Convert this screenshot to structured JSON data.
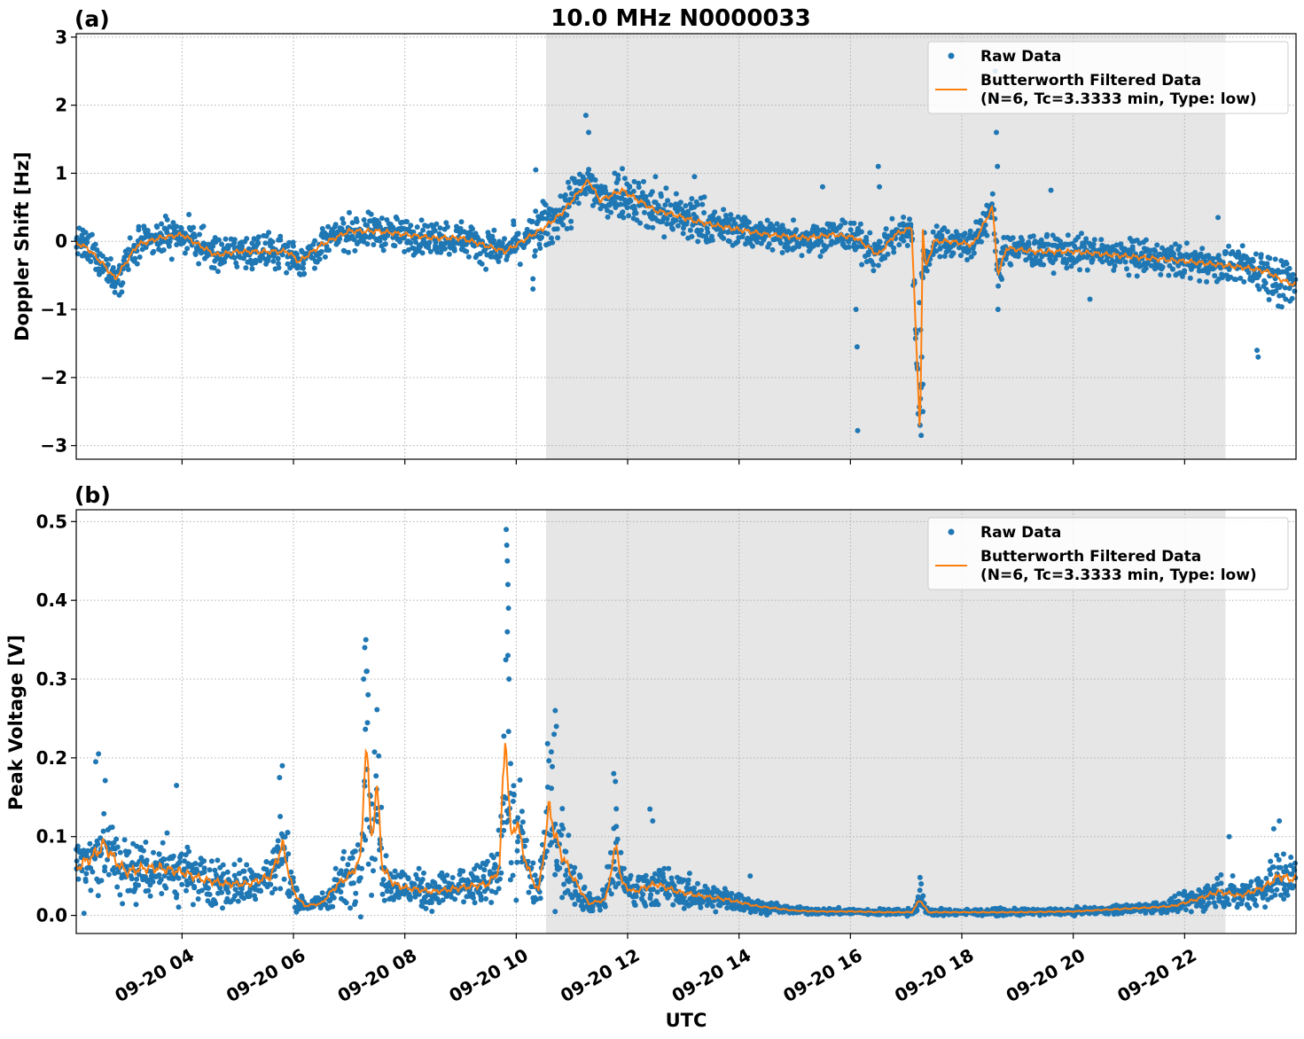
{
  "figure_title": "10.0 MHz N0000033",
  "xlabel": "UTC",
  "colors": {
    "raw": "#1f77b4",
    "filtered": "#ff7f0e",
    "shade": "#e6e6e6",
    "grid": "#b0b0b0"
  },
  "shaded_region": {
    "start": "09-20 10:32",
    "end": "09-20 22:44"
  },
  "x_range": [
    "09-20 02:06",
    "09-20 24:00"
  ],
  "x_ticks": [
    "09-20 04",
    "09-20 06",
    "09-20 08",
    "09-20 10",
    "09-20 12",
    "09-20 14",
    "09-20 16",
    "09-20 18",
    "09-20 20",
    "09-20 22"
  ],
  "legend": {
    "raw_label": "Raw Data",
    "filtered_label_line1": "Butterworth Filtered Data",
    "filtered_label_line2": "(N=6, Tc=3.3333 min, Type: low)"
  },
  "chart_data": [
    {
      "type": "scatter",
      "panel_label": "(a)",
      "ylabel": "Doppler Shift [Hz]",
      "ylim": [
        -3.2,
        3.05
      ],
      "y_ticks": [
        3,
        2,
        1,
        0,
        -1,
        -2,
        -3
      ],
      "y_tick_labels": [
        "3",
        "2",
        "1",
        "0",
        "−1",
        "−2",
        "−3"
      ],
      "grid": true,
      "legend_position": "top-right",
      "series": [
        {
          "name": "Butterworth Filtered Data (N=6, Tc=3.3333 min, Type: low)",
          "x_hours": [
            2.1,
            2.3,
            2.6,
            2.8,
            3.2,
            3.6,
            4.0,
            4.3,
            4.6,
            5.0,
            5.5,
            5.9,
            6.1,
            6.5,
            7.0,
            7.5,
            8.0,
            8.5,
            9.0,
            9.4,
            9.8,
            10.1,
            10.5,
            10.8,
            11.1,
            11.3,
            11.5,
            11.9,
            12.2,
            12.5,
            12.8,
            13.2,
            13.8,
            14.5,
            15.2,
            15.7,
            16.1,
            16.5,
            16.8,
            17.1,
            17.25,
            17.3,
            17.35,
            17.5,
            17.8,
            18.2,
            18.55,
            18.65,
            18.8,
            19.3,
            20.0,
            20.7,
            21.4,
            22.1,
            22.7,
            23.2,
            23.5,
            23.7,
            24.0
          ],
          "y": [
            -0.02,
            -0.1,
            -0.35,
            -0.55,
            -0.05,
            0.05,
            0.1,
            -0.05,
            -0.2,
            -0.15,
            -0.15,
            -0.15,
            -0.3,
            -0.05,
            0.15,
            0.15,
            0.1,
            0.05,
            0.05,
            -0.05,
            -0.15,
            0.0,
            0.2,
            0.4,
            0.7,
            0.9,
            0.6,
            0.75,
            0.6,
            0.45,
            0.4,
            0.3,
            0.2,
            0.1,
            0.05,
            0.1,
            0.05,
            -0.2,
            0.1,
            0.2,
            -2.9,
            0.2,
            -0.4,
            0.0,
            0.0,
            -0.05,
            0.5,
            -0.5,
            -0.1,
            -0.15,
            -0.15,
            -0.2,
            -0.25,
            -0.3,
            -0.35,
            -0.4,
            -0.45,
            -0.55,
            -0.65
          ]
        },
        {
          "name": "Raw Data",
          "outliers": [
            [
              11.25,
              1.85
            ],
            [
              11.3,
              1.6
            ],
            [
              16.1,
              -1.0
            ],
            [
              16.12,
              -1.55
            ],
            [
              16.13,
              -2.78
            ],
            [
              16.5,
              1.1
            ],
            [
              16.52,
              0.8
            ],
            [
              17.25,
              -2.7
            ],
            [
              17.27,
              -2.85
            ],
            [
              17.3,
              -2.5
            ],
            [
              17.3,
              -2.1
            ],
            [
              17.28,
              -1.7
            ],
            [
              17.26,
              -1.3
            ],
            [
              17.24,
              -0.9
            ],
            [
              18.6,
              2.5
            ],
            [
              18.6,
              2.1
            ],
            [
              18.62,
              1.6
            ],
            [
              18.64,
              1.1
            ],
            [
              18.65,
              -1.0
            ],
            [
              10.3,
              -0.55
            ],
            [
              10.3,
              -0.7
            ],
            [
              10.35,
              1.05
            ],
            [
              12.5,
              0.95
            ],
            [
              13.2,
              0.95
            ],
            [
              15.5,
              0.8
            ],
            [
              19.6,
              0.75
            ],
            [
              20.3,
              -0.85
            ],
            [
              23.3,
              -1.6
            ],
            [
              23.32,
              -1.7
            ],
            [
              22.6,
              0.35
            ],
            [
              9.95,
              0.3
            ]
          ]
        }
      ]
    },
    {
      "type": "scatter",
      "panel_label": "(b)",
      "ylabel": "Peak Voltage [V]",
      "ylim": [
        -0.023,
        0.515
      ],
      "y_ticks": [
        0.5,
        0.4,
        0.3,
        0.2,
        0.1,
        0.0
      ],
      "y_tick_labels": [
        "0.5",
        "0.4",
        "0.3",
        "0.2",
        "0.1",
        "0.0"
      ],
      "grid": true,
      "legend_position": "top-right",
      "series": [
        {
          "name": "Butterworth Filtered Data (N=6, Tc=3.3333 min, Type: low)",
          "x_hours": [
            2.1,
            2.4,
            2.6,
            2.8,
            3.0,
            3.3,
            3.6,
            4.0,
            4.4,
            4.8,
            5.2,
            5.6,
            5.8,
            6.0,
            6.2,
            6.5,
            6.8,
            7.0,
            7.2,
            7.3,
            7.4,
            7.5,
            7.6,
            7.8,
            8.0,
            8.5,
            9.0,
            9.5,
            9.7,
            9.8,
            9.9,
            10.0,
            10.2,
            10.4,
            10.6,
            10.7,
            10.8,
            11.0,
            11.3,
            11.6,
            11.8,
            11.9,
            12.1,
            12.5,
            12.9,
            13.3,
            13.8,
            14.3,
            15.0,
            15.5,
            16.0,
            16.6,
            17.1,
            17.25,
            17.4,
            18.0,
            19.0,
            20.0,
            20.8,
            21.4,
            21.8,
            22.2,
            22.6,
            23.0,
            23.4,
            23.7,
            24.0
          ],
          "y": [
            0.06,
            0.075,
            0.09,
            0.07,
            0.055,
            0.06,
            0.06,
            0.055,
            0.045,
            0.04,
            0.04,
            0.05,
            0.09,
            0.03,
            0.012,
            0.015,
            0.04,
            0.05,
            0.07,
            0.22,
            0.1,
            0.16,
            0.06,
            0.04,
            0.035,
            0.03,
            0.035,
            0.04,
            0.06,
            0.24,
            0.1,
            0.12,
            0.06,
            0.03,
            0.14,
            0.1,
            0.08,
            0.05,
            0.015,
            0.02,
            0.09,
            0.04,
            0.03,
            0.04,
            0.03,
            0.025,
            0.02,
            0.012,
            0.006,
            0.005,
            0.005,
            0.004,
            0.004,
            0.02,
            0.004,
            0.004,
            0.004,
            0.005,
            0.008,
            0.01,
            0.012,
            0.02,
            0.03,
            0.025,
            0.035,
            0.05,
            0.045
          ]
        },
        {
          "name": "Raw Data",
          "outliers": [
            [
              9.82,
              0.49
            ],
            [
              9.83,
              0.47
            ],
            [
              9.84,
              0.45
            ],
            [
              9.85,
              0.42
            ],
            [
              9.86,
              0.39
            ],
            [
              9.84,
              0.36
            ],
            [
              9.85,
              0.33
            ],
            [
              9.87,
              0.3
            ],
            [
              7.3,
              0.35
            ],
            [
              7.28,
              0.34
            ],
            [
              7.32,
              0.31
            ],
            [
              7.26,
              0.3
            ],
            [
              7.34,
              0.28
            ],
            [
              10.7,
              0.26
            ],
            [
              10.72,
              0.24
            ],
            [
              10.68,
              0.23
            ],
            [
              11.75,
              0.18
            ],
            [
              11.78,
              0.17
            ],
            [
              5.8,
              0.19
            ],
            [
              5.75,
              0.175
            ],
            [
              2.5,
              0.205
            ],
            [
              2.45,
              0.195
            ],
            [
              3.9,
              0.165
            ],
            [
              12.4,
              0.135
            ],
            [
              12.45,
              0.12
            ],
            [
              14.2,
              0.05
            ],
            [
              17.25,
              0.048
            ],
            [
              17.27,
              0.04
            ],
            [
              23.7,
              0.12
            ],
            [
              23.6,
              0.11
            ],
            [
              22.8,
              0.1
            ]
          ]
        }
      ]
    }
  ]
}
